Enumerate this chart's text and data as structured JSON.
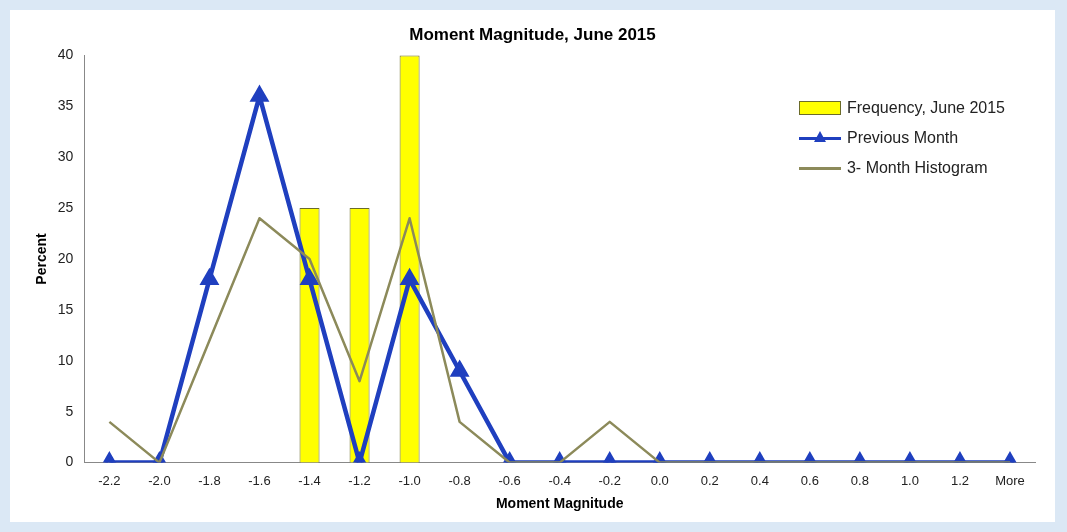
{
  "chart_data": {
    "type": "bar",
    "title": "Moment Magnitude, June 2015",
    "xlabel": "Moment Magnitude",
    "ylabel": "Percent",
    "categories": [
      "-2.2",
      "-2.0",
      "-1.8",
      "-1.6",
      "-1.4",
      "-1.2",
      "-1.0",
      "-0.8",
      "-0.6",
      "-0.4",
      "-0.2",
      "0.0",
      "0.2",
      "0.4",
      "0.6",
      "0.8",
      "1.0",
      "1.2",
      "More"
    ],
    "series": [
      {
        "name": "Frequency, June 2015",
        "color": "#ffff00",
        "values": [
          0,
          0,
          0,
          0,
          25,
          25,
          40,
          0,
          0,
          0,
          0,
          0,
          0,
          0,
          0,
          0,
          0,
          0,
          0
        ]
      },
      {
        "name": "Previous Month",
        "type": "line",
        "color": "#1f3fbf",
        "marker": "triangle",
        "values": [
          0,
          0,
          18,
          36,
          18,
          0,
          18,
          9,
          0,
          0,
          0,
          0,
          0,
          0,
          0,
          0,
          0,
          0,
          0
        ]
      },
      {
        "name": "3- Month Histogram",
        "type": "line",
        "color": "#8c8a5a",
        "marker": "none",
        "values": [
          4,
          0,
          12,
          24,
          20,
          8,
          24,
          4,
          0,
          0,
          4,
          0,
          0,
          0,
          0,
          0,
          0,
          0,
          0
        ]
      }
    ],
    "ylim": [
      0,
      40
    ],
    "yticks": [
      0,
      5,
      10,
      15,
      20,
      25,
      30,
      35,
      40
    ],
    "grid": false,
    "legend": "top right"
  }
}
